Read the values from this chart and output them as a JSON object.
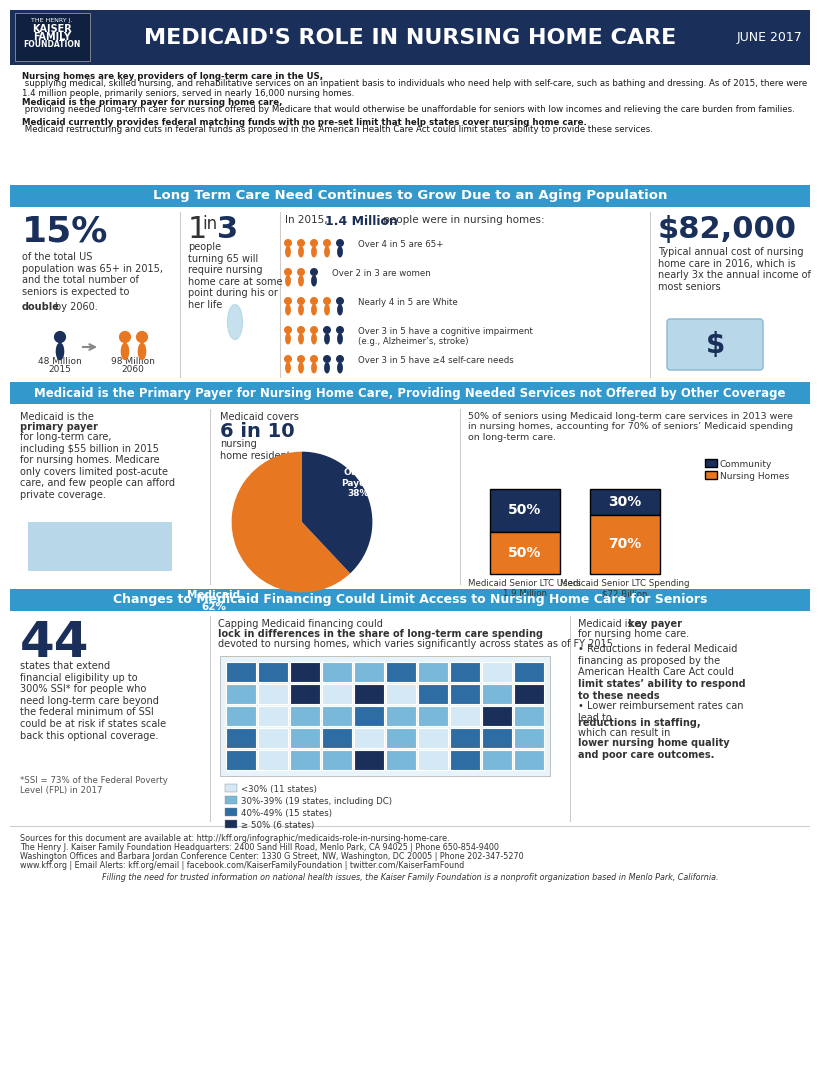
{
  "title": "MEDICAID'S ROLE IN NURSING HOME CARE",
  "date": "JUNE 2017",
  "header_bg": "#1a2f5a",
  "section1_bg": "#3399cc",
  "section2_bg": "#3399cc",
  "section3_bg": "#3399cc",
  "body_bg": "#ffffff",
  "light_bg": "#f5f5f5",
  "orange": "#e87722",
  "dark_blue": "#1a2f5a",
  "medium_blue": "#2e6da4",
  "light_blue": "#5bc4e8",
  "gray": "#888888",
  "text_dark": "#333333",
  "intro_text1_bold": "Nursing homes are key providers of long-term care in the US,",
  "intro_text1_rest": " supplying medical, skilled nursing, and rehabilitative services on an inpatient basis to individuals who need help with self-care, such as bathing and dressing. As of 2015, there were 1.4 million people, primarily seniors, served in nearly 16,000 nursing homes.",
  "intro_text2_bold": "Medicaid is the primary payer for nursing home care,",
  "intro_text2_rest": " providing needed long-term care services not offered by Medicare that would otherwise be unaffordable for seniors with low incomes and relieving the care burden from families.",
  "intro_text3_bold": "Medicaid currently provides federal matching funds with no pre-set limit that help states cover nursing home care.",
  "intro_text3_rest": " Medicaid restructuring and cuts in federal funds as proposed in the American Health Care Act could limit states’ ability to provide these services.",
  "section1_title": "Long Term Care Need Continues to Grow Due to an Aging Population",
  "s1_stat1_pct": "15%",
  "s1_stat1_text": "of the total US population was 65+ in 2015, and the total number of seniors is expected to",
  "s1_stat1_bold": "double",
  "s1_stat1_text2": "by 2060.",
  "s1_pop1": "48 Million",
  "s1_pop1_year": "2015",
  "s1_pop2": "98 Million",
  "s1_pop2_year": "2060",
  "s1_stat2": "1 in 3",
  "s1_stat2_text": "people turning 65 will require nursing home care at some point during his or her life",
  "s1_stat3": "1.4 Million",
  "s1_stat3_intro": "In 2015,",
  "s1_stat3_text": "people were in nursing homes:",
  "s1_bullets": [
    "Over 4 in 5 are 65+",
    "Over 2 in 3 are women",
    "Nearly 4 in 5 are White",
    "Over 3 in 5 have a cognitive impairment (e.g., Alzheimer’s, stroke)",
    "Over 3 in 5 have ≥4 self-care needs"
  ],
  "s1_cost": "$82,000",
  "s1_cost_text": "Typical annual cost of nursing home care in 2016, which is nearly 3x the annual income of most seniors",
  "section2_title": "Medicaid is the Primary Payer for Nursing Home Care, Providing Needed Services not Offered by Other Coverage",
  "s2_text1_bold": "primary payer",
  "s2_text1": "Medicaid is the primary payer for long-term care, including $55 billion in 2015 for nursing homes. Medicare only covers limited post-acute care, and few people can afford private coverage.",
  "s2_pie_medicaid": 62,
  "s2_pie_other": 38,
  "s2_pie_label1": "Medicaid\n62%",
  "s2_pie_label2": "Other\nPayers\n38%",
  "s2_stat_covers": "6 in 10",
  "s2_stat_covers_text": "nursing home residents.",
  "s2_stat_covers_prefix": "Medicaid covers",
  "s2_50pct_text": "50% of seniors using Medicaid long-term care services in 2013 were in nursing homes, accounting for 70% of seniors’ Medicaid spending on long-term care.",
  "s2_bar1_community": 50,
  "s2_bar1_nursing": 50,
  "s2_bar2_community": 30,
  "s2_bar2_nursing": 70,
  "s2_bar1_label": "Medicaid Senior LTC Users\n1.9 Million",
  "s2_bar2_label": "Medicaid Senior LTC Spending\n$72 Billion",
  "section3_title": "Changes to Medicaid Financing Could Limit Access to Nursing Home Care for Seniors",
  "s3_stat": "44",
  "s3_text1": "states that extend financial eligibility up to 300% SSI* for people who need long-term care beyond the federal minimum of SSI could be at risk if states scale back this optional coverage.",
  "s3_footnote": "*SSI = 73% of the Federal Poverty Level (FPL) in 2017",
  "s3_map_title": "Capping Medicaid financing could",
  "s3_map_title_bold": "lock in differences in the share of long-term care spending",
  "s3_map_title_rest": "devoted to nursing homes, which varies significantly across states as of FY 2015.",
  "s3_legend": [
    {
      "label": "<30% (11 states)",
      "color": "#d4e8f5"
    },
    {
      "label": "30%-39% (19 states, including DC)",
      "color": "#7ab8d9"
    },
    {
      "label": "40%-49% (15 states)",
      "color": "#2e6da4"
    },
    {
      "label": "≥ 50% (6 states)",
      "color": "#1a2f5a"
    }
  ],
  "s3_right_text": "Medicaid is a",
  "s3_right_bold": "key payer",
  "s3_right_text2": "for nursing home care.\n• Reductions in federal Medicaid financing as proposed by the American Health Care Act could",
  "s3_right_bold2": "limit states’ ability to respond to these needs",
  "s3_right_text3": "\n• Lower reimbursement rates can lead to",
  "s3_right_bold3": "reductions in staffing,",
  "s3_right_text4": "which can result in",
  "s3_right_bold4": "lower nursing home quality and poor care outcomes.",
  "footer_text": "Sources for this document are available at: http://kff.org/infographic/medicaids-role-in-nursing-home-care.\nThe Henry J. Kaiser Family Foundation Headquarters: 2400 Sand Hill Road, Menlo Park, CA 94025 | Phone 650-854-9400\nWashington Offices and Barbara Jordan Conference Center: 1330 G Street, NW, Washington, DC 20005 | Phone 202-347-5270\nwww.kff.org | Email Alerts: kff.org/email | facebook.com/KaiserFamilyFoundation | twitter.com/KaiserFamFound",
  "footer_italic": "Filling the need for trusted information on national health issues, the Kaiser Family Foundation is a nonprofit organization based in Menlo Park, California."
}
